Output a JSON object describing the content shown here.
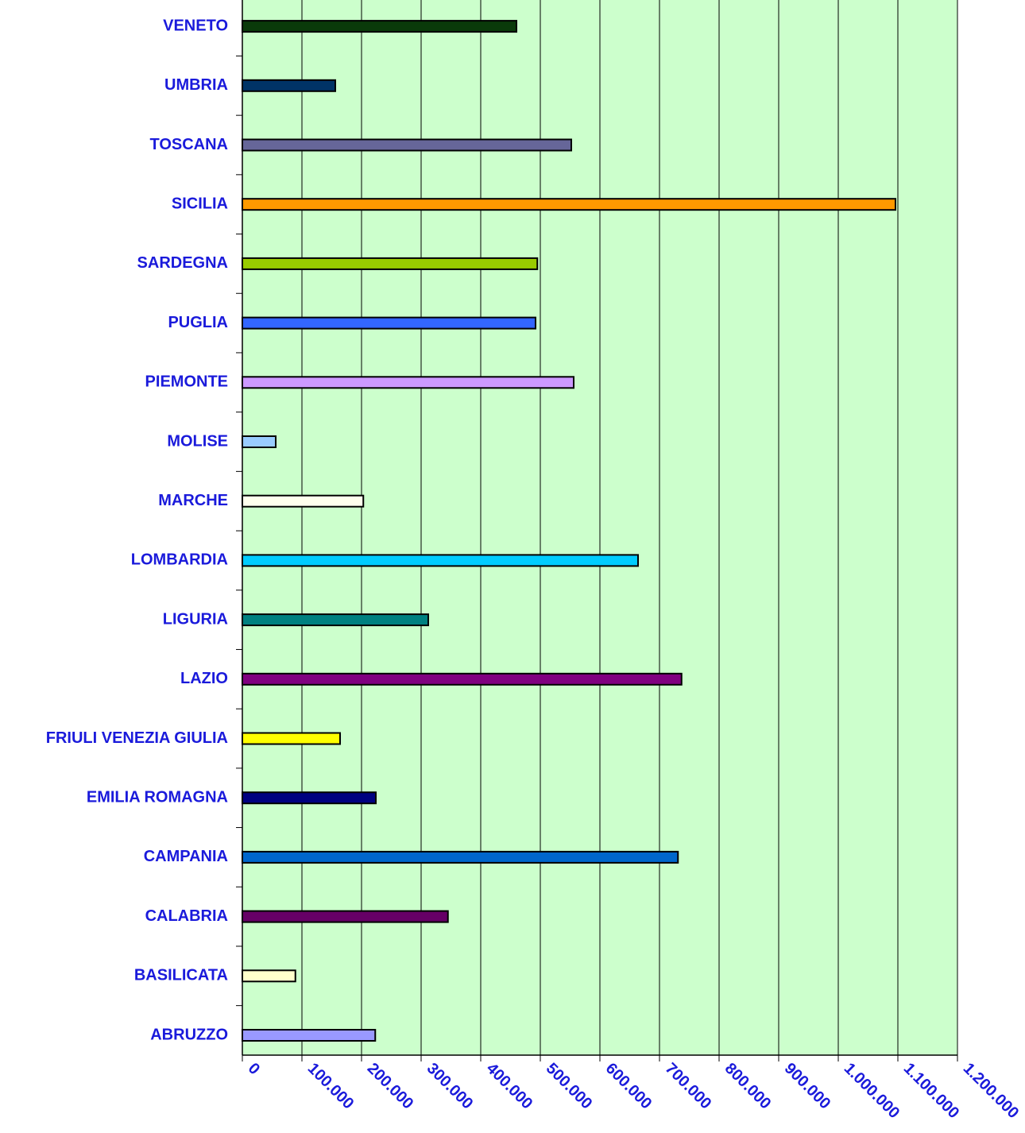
{
  "chart_data": {
    "type": "bar",
    "orientation": "horizontal",
    "categories": [
      "ABRUZZO",
      "BASILICATA",
      "CALABRIA",
      "CAMPANIA",
      "EMILIA ROMAGNA",
      "FRIULI VENEZIA GIULIA",
      "LAZIO",
      "LIGURIA",
      "LOMBARDIA",
      "MARCHE",
      "MOLISE",
      "PIEMONTE",
      "PUGLIA",
      "SARDEGNA",
      "SICILIA",
      "TOSCANA",
      "UMBRIA",
      "VENETO"
    ],
    "values": [
      223000,
      89000,
      345000,
      731000,
      224000,
      164000,
      737000,
      312000,
      664000,
      203000,
      56000,
      556000,
      492000,
      495000,
      1096000,
      552000,
      156000,
      460000
    ],
    "colors": [
      "#9999ff",
      "#ffffcc",
      "#660066",
      "#0066cc",
      "#000080",
      "#ffff00",
      "#800080",
      "#008080",
      "#00ccff",
      "#ffffee",
      "#99ccff",
      "#cc99ff",
      "#3366ff",
      "#99cc00",
      "#ff9900",
      "#666699",
      "#003366",
      "#0a3a0a"
    ],
    "xlim": [
      0,
      1200000
    ],
    "xticks": [
      0,
      {
        "value": 100000,
        "label": "100.000"
      },
      {
        "value": 200000,
        "label": "200.000"
      },
      {
        "value": 300000,
        "label": "300.000"
      },
      {
        "value": 400000,
        "label": "400.000"
      },
      {
        "value": 500000,
        "label": "500.000"
      },
      {
        "value": 600000,
        "label": "600.000"
      },
      {
        "value": 700000,
        "label": "700.000"
      },
      {
        "value": 800000,
        "label": "800.000"
      },
      {
        "value": 900000,
        "label": "900.000"
      },
      {
        "value": 1000000,
        "label": "1.000.000"
      },
      {
        "value": 1100000,
        "label": "1.100.000"
      },
      {
        "value": 1200000,
        "label": "1.200.000"
      }
    ],
    "grid": true,
    "background": "#ccffcc"
  }
}
